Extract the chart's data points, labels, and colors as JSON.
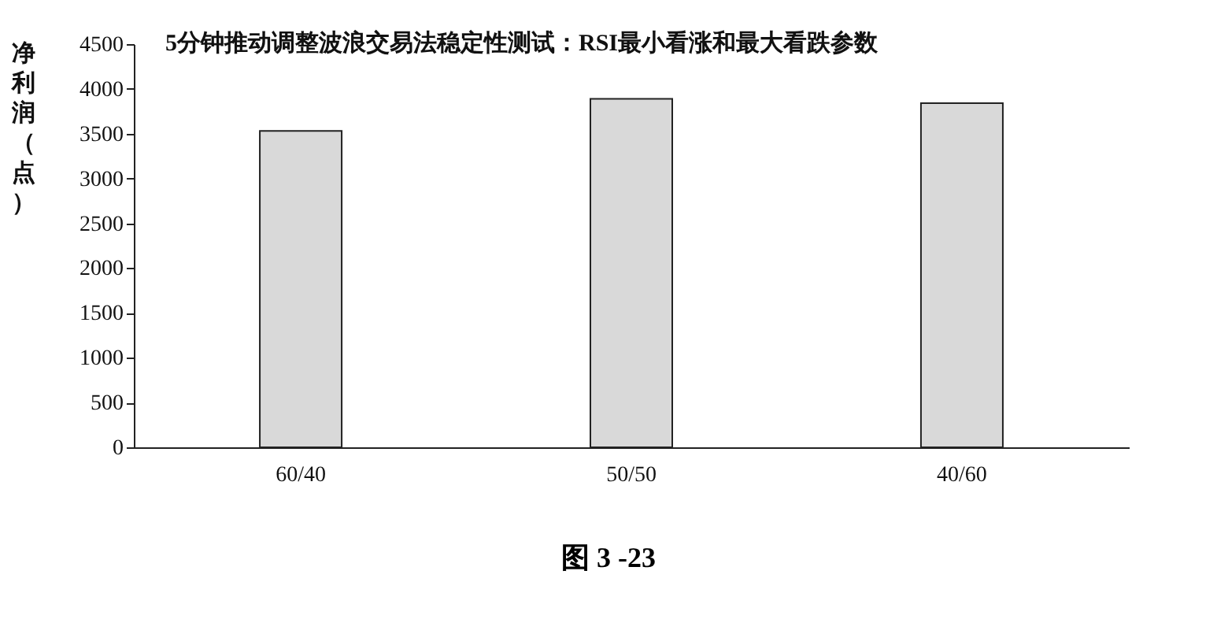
{
  "chart_data": {
    "type": "bar",
    "title": "5分钟推动调整波浪交易法稳定性测试：RSI最小看涨和最大看跌参数",
    "ylabel": "净利润（点）",
    "categories": [
      "60/40",
      "50/50",
      "40/60"
    ],
    "values": [
      3530,
      3890,
      3840
    ],
    "color": "#d9d9d9",
    "ylim": [
      0,
      4500
    ],
    "yticks": [
      0,
      500,
      1000,
      1500,
      2000,
      2500,
      3000,
      3500,
      4000,
      4500
    ],
    "annotations": [
      "图 3 -23"
    ]
  }
}
